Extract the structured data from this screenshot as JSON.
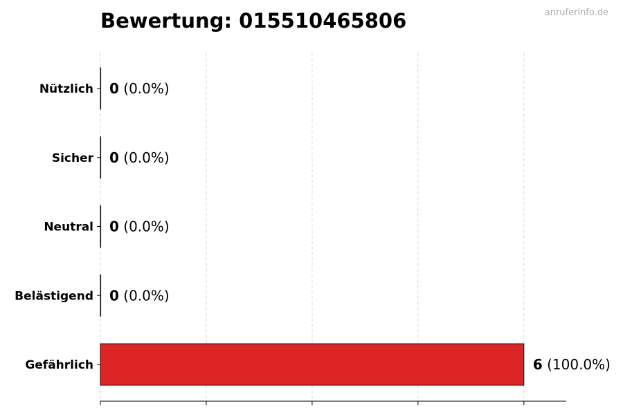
{
  "chart_data": {
    "type": "bar",
    "orientation": "horizontal",
    "title": "Bewertung: 015510465806",
    "watermark": "anruferinfo.de",
    "categories": [
      "Nützlich",
      "Sicher",
      "Neutral",
      "Belästigend",
      "Gefährlich"
    ],
    "values": [
      0,
      0,
      0,
      0,
      6
    ],
    "labels": [
      "(0.0%)",
      "(0.0%)",
      "(0.0%)",
      "(0.0%)",
      "(100.0%)"
    ],
    "colors": [
      "#4caf50",
      "#2196f3",
      "#9e9e9e",
      "#ff9800",
      "#dc2626"
    ],
    "xlim": [
      0,
      6.6
    ],
    "xgrid": [
      0,
      1.5,
      3,
      4.5,
      6
    ],
    "grid": true,
    "xlabel": "",
    "ylabel": ""
  }
}
